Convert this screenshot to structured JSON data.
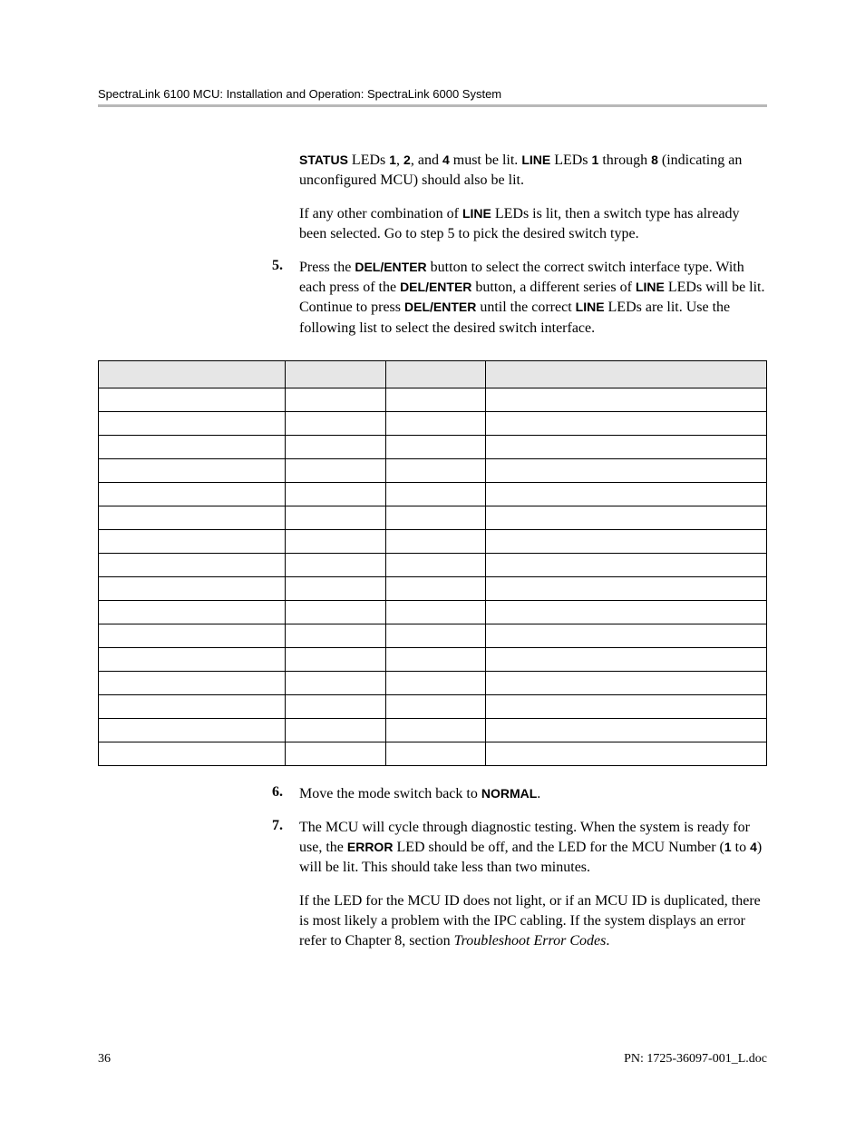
{
  "header": {
    "text": "SpectraLink 6100 MCU: Installation and Operation: SpectraLink 6000 System"
  },
  "paragraphs": {
    "p1_pre": "",
    "p1_b1": "STATUS",
    "p1_mid1": " LEDs ",
    "p1_b2": "1",
    "p1_mid2": ", ",
    "p1_b3": "2",
    "p1_mid3": ", and ",
    "p1_b4": "4",
    "p1_mid4": " must be lit. ",
    "p1_b5": "LINE",
    "p1_mid5": " LEDs ",
    "p1_b6": "1",
    "p1_mid6": " through ",
    "p1_b7": "8",
    "p1_tail": " (indicating an unconfigured MCU) should also be lit.",
    "p2_pre": "If any other combination of ",
    "p2_b1": "LINE",
    "p2_tail": " LEDs is lit, then a switch type has already been selected. Go to step 5 to pick the desired switch type."
  },
  "step5": {
    "num": "5.",
    "t1": "Press the ",
    "b1": "DEL/ENTER",
    "t2": " button to select the correct switch interface type. With each press of the ",
    "b2": "DEL/ENTER",
    "t3": " button, a different series of ",
    "b3": "LINE",
    "t4": " LEDs will be lit. Continue to press ",
    "b4": "DEL/ENTER",
    "t5": " until the correct ",
    "b5": "LINE",
    "t6": " LEDs are lit. Use the following list to select the desired switch interface."
  },
  "table": {
    "headers": [
      "",
      "",
      "",
      ""
    ],
    "rows": [
      [
        "",
        "",
        "",
        ""
      ],
      [
        "",
        "",
        "",
        ""
      ],
      [
        "",
        "",
        "",
        ""
      ],
      [
        "",
        "",
        "",
        ""
      ],
      [
        "",
        "",
        "",
        ""
      ],
      [
        "",
        "",
        "",
        ""
      ],
      [
        "",
        "",
        "",
        ""
      ],
      [
        "",
        "",
        "",
        ""
      ],
      [
        "",
        "",
        "",
        ""
      ],
      [
        "",
        "",
        "",
        ""
      ],
      [
        "",
        "",
        "",
        ""
      ],
      [
        "",
        "",
        "",
        ""
      ],
      [
        "",
        "",
        "",
        ""
      ],
      [
        "",
        "",
        "",
        ""
      ],
      [
        "",
        "",
        "",
        ""
      ],
      [
        "",
        "",
        "",
        ""
      ]
    ]
  },
  "step6": {
    "num": "6.",
    "t1": "Move the mode switch back to ",
    "b1": "NORMAL",
    "t2": "."
  },
  "step7": {
    "num": "7.",
    "t1": "The MCU will cycle through diagnostic testing. When the system is ready for use, the ",
    "b1": "ERROR",
    "t2": " LED should be off, and the LED for the MCU Number (",
    "b2": "1",
    "t3": " to ",
    "b3": "4",
    "t4": ") will be lit. This should take less than two minutes.",
    "sub_t1": "If the LED for the MCU ID does not light, or if an MCU ID is duplicated, there is most likely a problem with the IPC cabling. If the system displays an error refer to Chapter 8, section ",
    "sub_i1": "Troubleshoot Error Codes",
    "sub_t2": "."
  },
  "footer": {
    "page": "36",
    "doc": "PN: 1725-36097-001_L.doc"
  }
}
